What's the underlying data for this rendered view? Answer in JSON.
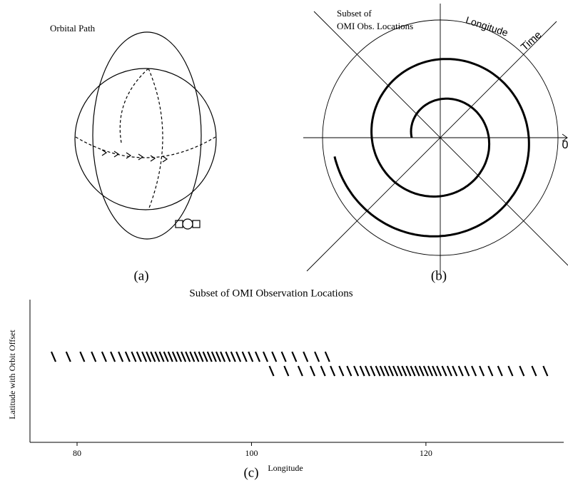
{
  "panels": {
    "a": {
      "title": "Orbital Path",
      "label": "(a)"
    },
    "b": {
      "annotation": [
        "Subset of",
        "OMI Obs. Locations"
      ],
      "axis_labels": {
        "longitude": "Longitude",
        "time": "Time",
        "zero": "0"
      },
      "label": "(b)"
    }
  },
  "chart_data": {
    "type": "scatter",
    "title": "Subset of OMI Observation Locations",
    "xlabel": "Longitude",
    "ylabel": "Latitude with Orbit Offset",
    "caption": "(c)",
    "xlim": [
      74.6,
      135.8
    ],
    "xticks": [
      80,
      100,
      120
    ],
    "ylim": [
      0,
      1
    ],
    "series": [
      {
        "color": "#000000",
        "x": [
          77.3,
          79.0,
          80.6,
          81.9,
          83.1,
          84.1,
          85.0,
          85.8,
          86.5,
          87.1,
          87.7,
          88.2,
          88.7,
          89.2,
          89.7,
          90.2,
          90.7,
          91.2,
          91.7,
          92.2,
          92.7,
          93.2,
          93.7,
          94.2,
          94.7,
          95.2,
          95.7,
          96.2,
          96.7,
          97.3,
          97.9,
          98.5,
          99.2,
          99.9,
          100.7,
          101.6,
          102.6,
          103.7,
          104.9,
          106.2,
          107.5,
          108.7
        ],
        "values": [
          0.6,
          0.6,
          0.6,
          0.6,
          0.6,
          0.6,
          0.6,
          0.6,
          0.6,
          0.6,
          0.6,
          0.6,
          0.6,
          0.6,
          0.6,
          0.6,
          0.6,
          0.6,
          0.6,
          0.6,
          0.6,
          0.6,
          0.6,
          0.6,
          0.6,
          0.6,
          0.6,
          0.6,
          0.6,
          0.6,
          0.6,
          0.6,
          0.6,
          0.6,
          0.6,
          0.6,
          0.6,
          0.6,
          0.6,
          0.6,
          0.6,
          0.6
        ]
      },
      {
        "color": "#000000",
        "x": [
          102.3,
          104.0,
          105.6,
          107.0,
          108.2,
          109.3,
          110.3,
          111.2,
          112.0,
          112.7,
          113.3,
          113.9,
          114.5,
          115.0,
          115.5,
          116.0,
          116.5,
          117.0,
          117.5,
          118.0,
          118.5,
          119.0,
          119.5,
          120.0,
          120.5,
          121.0,
          121.5,
          122.1,
          122.7,
          123.3,
          124.0,
          124.7,
          125.5,
          126.4,
          127.4,
          128.5,
          129.7,
          131.0,
          132.4,
          133.7
        ],
        "values": [
          0.5,
          0.5,
          0.5,
          0.5,
          0.5,
          0.5,
          0.5,
          0.5,
          0.5,
          0.5,
          0.5,
          0.5,
          0.5,
          0.5,
          0.5,
          0.5,
          0.5,
          0.5,
          0.5,
          0.5,
          0.5,
          0.5,
          0.5,
          0.5,
          0.5,
          0.5,
          0.5,
          0.5,
          0.5,
          0.5,
          0.5,
          0.5,
          0.5,
          0.5,
          0.5,
          0.5,
          0.5,
          0.5,
          0.5,
          0.5
        ]
      }
    ]
  }
}
